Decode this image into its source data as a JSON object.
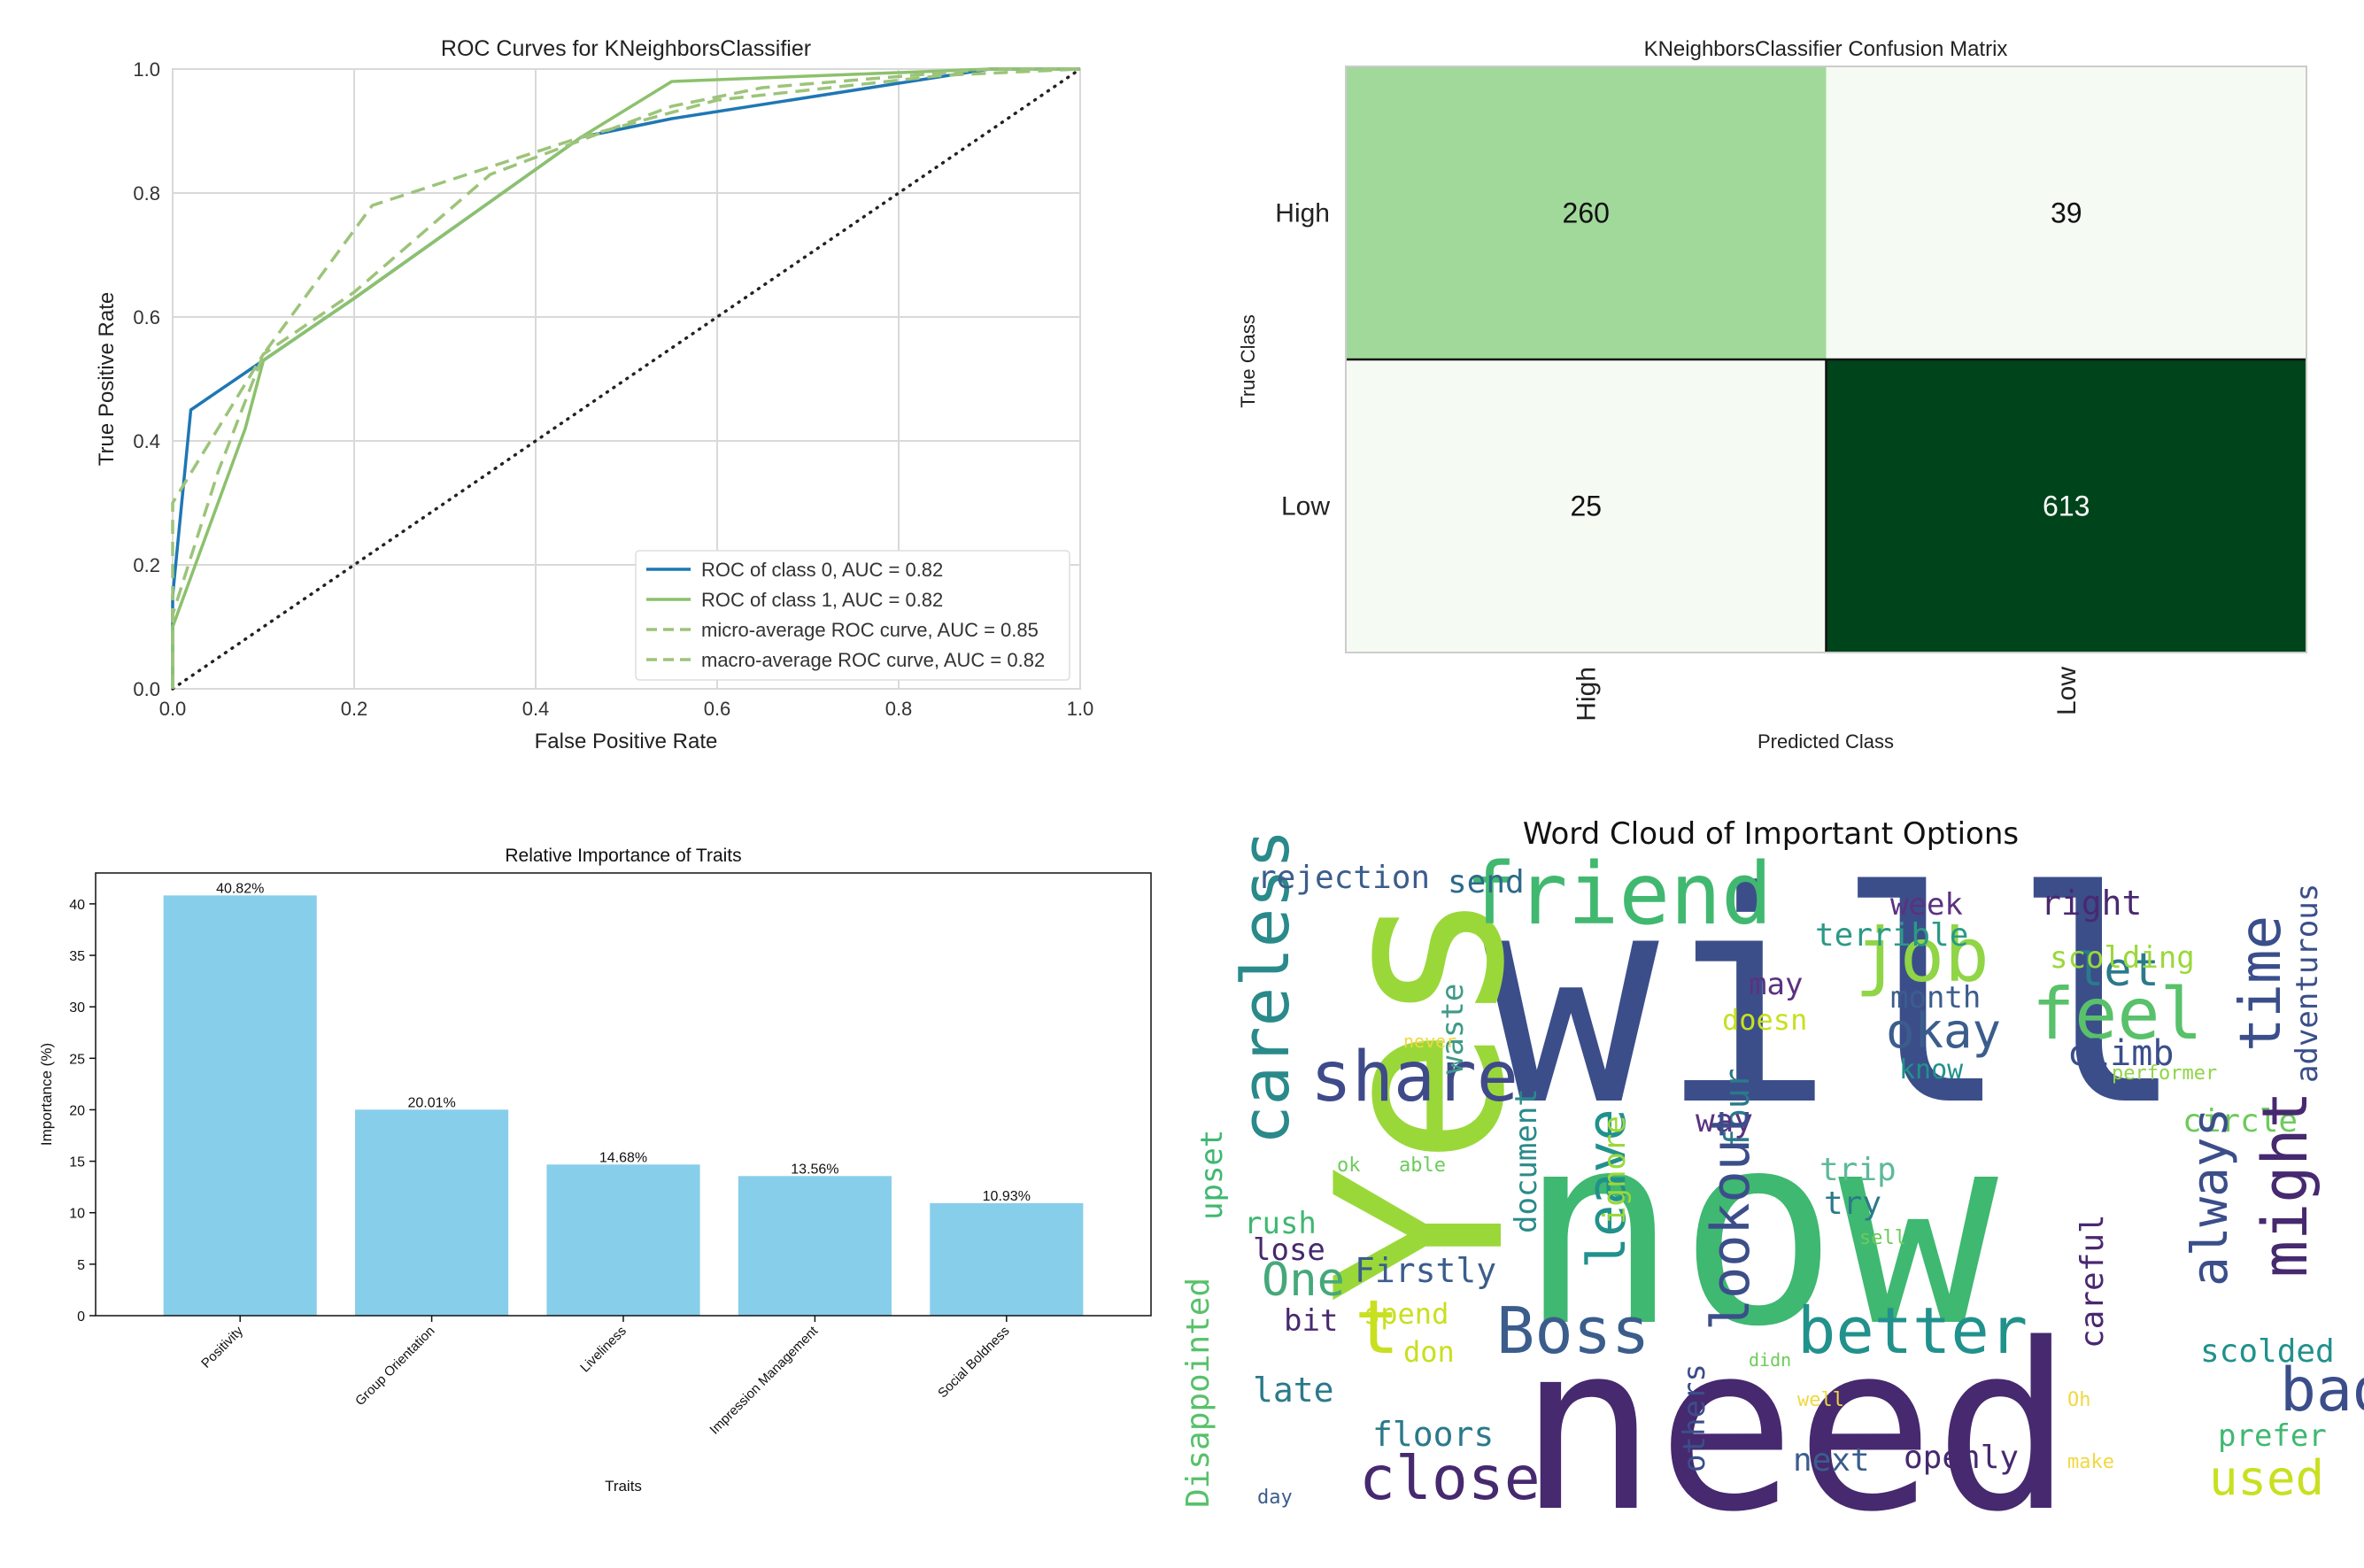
{
  "chart_data": [
    {
      "type": "line",
      "title": "ROC Curves for KNeighborsClassifier",
      "xlabel": "False Positive Rate",
      "ylabel": "True Positive Rate",
      "xlim": [
        0.0,
        1.0
      ],
      "ylim": [
        0.0,
        1.0
      ],
      "xticks": [
        "0.0",
        "0.2",
        "0.4",
        "0.6",
        "0.8",
        "1.0"
      ],
      "yticks": [
        "0.0",
        "0.2",
        "0.4",
        "0.6",
        "0.8",
        "1.0"
      ],
      "grid": true,
      "legend_position": "bottom-right",
      "series": [
        {
          "name": "ROC of class 0, AUC = 0.82",
          "color": "#1f77b4",
          "dash": false,
          "x": [
            0.0,
            0.0,
            0.02,
            0.1,
            0.2,
            0.45,
            0.55,
            0.9,
            1.0
          ],
          "y": [
            0.0,
            0.15,
            0.45,
            0.53,
            0.63,
            0.89,
            0.92,
            1.0,
            1.0
          ]
        },
        {
          "name": "ROC of class 1, AUC = 0.82",
          "color": "#8cc16c",
          "dash": false,
          "x": [
            0.0,
            0.0,
            0.08,
            0.1,
            0.2,
            0.45,
            0.55,
            0.9,
            1.0
          ],
          "y": [
            0.0,
            0.1,
            0.42,
            0.53,
            0.63,
            0.89,
            0.98,
            1.0,
            1.0
          ]
        },
        {
          "name": "micro-average ROC curve, AUC = 0.85",
          "color": "#9cc47a",
          "dash": true,
          "x": [
            0.0,
            0.0,
            0.05,
            0.1,
            0.22,
            0.45,
            0.55,
            0.6,
            0.85,
            1.0
          ],
          "y": [
            0.0,
            0.12,
            0.35,
            0.54,
            0.78,
            0.89,
            0.93,
            0.95,
            0.99,
            1.0
          ]
        },
        {
          "name": "macro-average ROC curve, AUC = 0.82",
          "color": "#9cc47a",
          "dash": true,
          "x": [
            0.0,
            0.0,
            0.05,
            0.1,
            0.2,
            0.35,
            0.55,
            0.65,
            0.9,
            1.0
          ],
          "y": [
            0.0,
            0.3,
            0.42,
            0.54,
            0.64,
            0.83,
            0.94,
            0.97,
            1.0,
            1.0
          ]
        }
      ],
      "reference_line": {
        "x": [
          0.0,
          1.0
        ],
        "y": [
          0.0,
          1.0
        ],
        "style": "dotted",
        "color": "#222222"
      }
    },
    {
      "type": "heatmap",
      "title": "KNeighborsClassifier Confusion Matrix",
      "xlabel": "Predicted Class",
      "ylabel": "True Class",
      "row_labels": [
        "High",
        "Low"
      ],
      "col_labels": [
        "High",
        "Low"
      ],
      "values": [
        [
          260,
          39
        ],
        [
          25,
          613
        ]
      ],
      "colors": [
        [
          "#a1d99b",
          "#f5fbf3"
        ],
        [
          "#f5fbf3",
          "#00441b"
        ]
      ],
      "text_colors": [
        [
          "#111111",
          "#111111"
        ],
        [
          "#111111",
          "#ffffff"
        ]
      ]
    },
    {
      "type": "bar",
      "title": "Relative Importance of Traits",
      "xlabel": "Traits",
      "ylabel": "Importance (%)",
      "categories": [
        "Positivity",
        "Group Orientation",
        "Liveliness",
        "Impression Management",
        "Social Boldness"
      ],
      "values": [
        40.82,
        20.01,
        14.68,
        13.56,
        10.93
      ],
      "value_labels": [
        "40.82%",
        "20.01%",
        "14.68%",
        "13.56%",
        "10.93%"
      ],
      "ylim": [
        0,
        43
      ],
      "yticks": [
        "0",
        "5",
        "10",
        "15",
        "20",
        "25",
        "30",
        "35",
        "40"
      ],
      "bar_color": "#87ceeb"
    }
  ],
  "wordcloud": {
    "title": "Word Cloud of Important Options",
    "words": [
      {
        "text": "will",
        "color": "#3b4e8a"
      },
      {
        "text": "now",
        "color": "#3fb871"
      },
      {
        "text": "need",
        "color": "#46296f"
      },
      {
        "text": "Yes",
        "color": "#9ad83a"
      },
      {
        "text": "friend",
        "color": "#41b870"
      },
      {
        "text": "careless",
        "color": "#2a8a8a"
      },
      {
        "text": "share",
        "color": "#3f4a8a"
      },
      {
        "text": "job",
        "color": "#8fd546"
      },
      {
        "text": "feel",
        "color": "#58c16a"
      },
      {
        "text": "time",
        "color": "#3a4e8b"
      },
      {
        "text": "okay",
        "color": "#3b5d8c"
      },
      {
        "text": "rejection",
        "color": "#3b5d8c"
      },
      {
        "text": "send",
        "color": "#2d6a8a"
      },
      {
        "text": "week",
        "color": "#5b3280"
      },
      {
        "text": "right",
        "color": "#4a2870"
      },
      {
        "text": "terrible",
        "color": "#2a9a86"
      },
      {
        "text": "let",
        "color": "#2a7a8a"
      },
      {
        "text": "scolding",
        "color": "#9ad83a"
      },
      {
        "text": "month",
        "color": "#3b5d8c"
      },
      {
        "text": "may",
        "color": "#5b3280"
      },
      {
        "text": "doesn",
        "color": "#c8e020"
      },
      {
        "text": "waste",
        "color": "#3f9a8a"
      },
      {
        "text": "never",
        "color": "#f0d840"
      },
      {
        "text": "climb",
        "color": "#3a4e8b"
      },
      {
        "text": "know",
        "color": "#21918c"
      },
      {
        "text": "performer",
        "color": "#8fd546"
      },
      {
        "text": "adventurous",
        "color": "#3b4e8a"
      },
      {
        "text": "four",
        "color": "#2a7a8a"
      },
      {
        "text": "way",
        "color": "#5b3280"
      },
      {
        "text": "circle",
        "color": "#6dcb5a"
      },
      {
        "text": "document",
        "color": "#2a8a8a"
      },
      {
        "text": "upset",
        "color": "#3fb871"
      },
      {
        "text": "ok",
        "color": "#6dcb5a"
      },
      {
        "text": "able",
        "color": "#6dcb5a"
      },
      {
        "text": "leave",
        "color": "#21918c"
      },
      {
        "text": "ignore",
        "color": "#9ad83a"
      },
      {
        "text": "lookout",
        "color": "#3b4e8a"
      },
      {
        "text": "trip",
        "color": "#5fb89a"
      },
      {
        "text": "try",
        "color": "#2a7a8a"
      },
      {
        "text": "always",
        "color": "#3b4e8a"
      },
      {
        "text": "might",
        "color": "#46296f"
      },
      {
        "text": "rush",
        "color": "#3fb871"
      },
      {
        "text": "lose",
        "color": "#46296f"
      },
      {
        "text": "One",
        "color": "#46a87a"
      },
      {
        "text": "Firstly",
        "color": "#3b5d8c"
      },
      {
        "text": "sell",
        "color": "#6dcb5a"
      },
      {
        "text": "bit",
        "color": "#46296f"
      },
      {
        "text": "spend",
        "color": "#c8e020"
      },
      {
        "text": "t",
        "color": "#c8e020"
      },
      {
        "text": "Boss",
        "color": "#3b5d8c"
      },
      {
        "text": "better",
        "color": "#21918c"
      },
      {
        "text": "careful",
        "color": "#4a2870"
      },
      {
        "text": "scolded",
        "color": "#21918c"
      },
      {
        "text": "don",
        "color": "#c8e020"
      },
      {
        "text": "Disappointed",
        "color": "#58c16a"
      },
      {
        "text": "late",
        "color": "#2a7a8a"
      },
      {
        "text": "others",
        "color": "#3b4e8a"
      },
      {
        "text": "didn",
        "color": "#6dcb5a"
      },
      {
        "text": "well",
        "color": "#f0d840"
      },
      {
        "text": "Oh",
        "color": "#f0d840"
      },
      {
        "text": "bad",
        "color": "#3b4e8a"
      },
      {
        "text": "floors",
        "color": "#2a7a8a"
      },
      {
        "text": "prefer",
        "color": "#3fb871"
      },
      {
        "text": "close",
        "color": "#46296f"
      },
      {
        "text": "next",
        "color": "#3b5d8c"
      },
      {
        "text": "openly",
        "color": "#46296f"
      },
      {
        "text": "make",
        "color": "#f0d840"
      },
      {
        "text": "used",
        "color": "#c8e020"
      },
      {
        "text": "day",
        "color": "#3b5d8c"
      }
    ]
  }
}
